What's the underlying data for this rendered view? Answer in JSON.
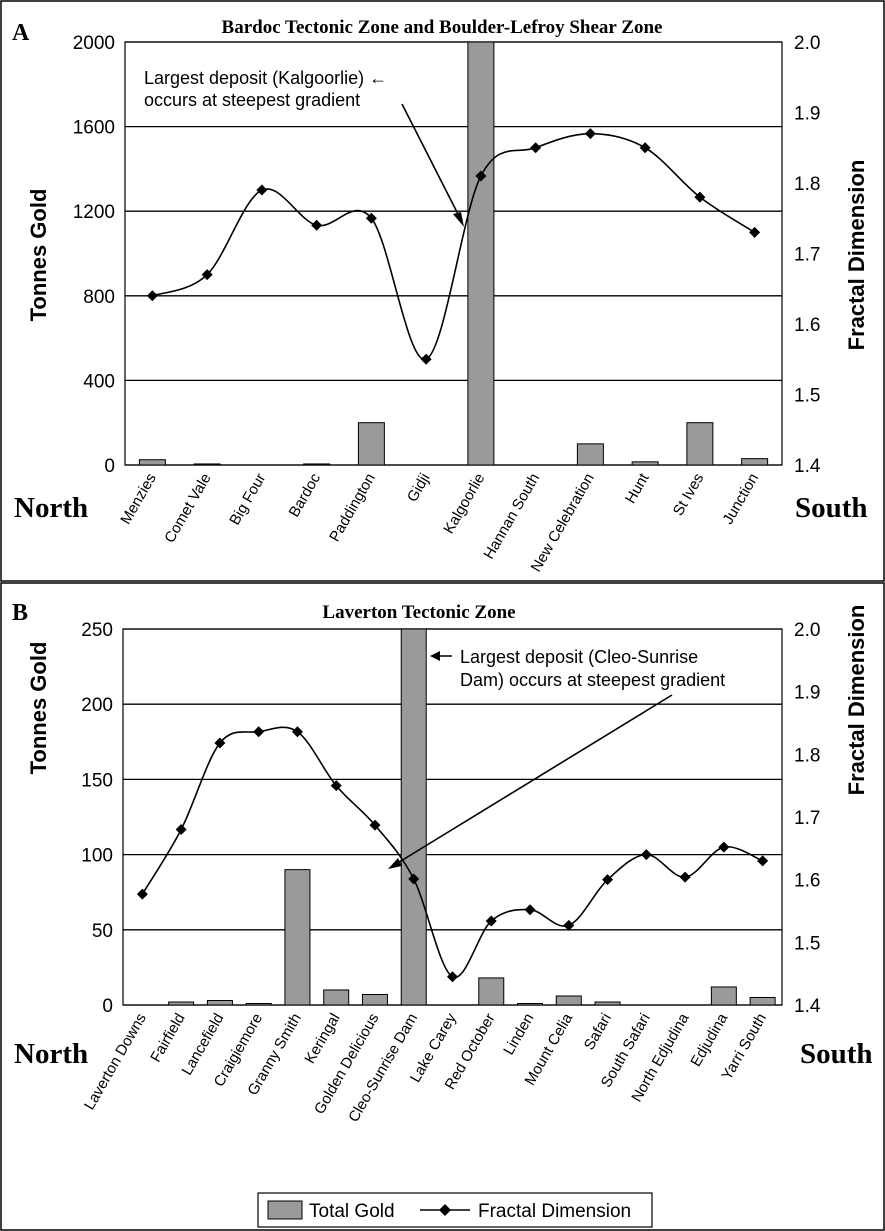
{
  "chart_data": [
    {
      "type": "bar",
      "panel_label": "A",
      "title": "Bardoc Tectonic Zone and Boulder-Lefroy Shear Zone",
      "ylabel": "Tonnes Gold",
      "y2label": "Fractal Dimension",
      "ylim": [
        0,
        2000
      ],
      "y2lim": [
        1.4,
        2.0
      ],
      "yticks": [
        "0",
        "400",
        "800",
        "1200",
        "1600",
        "2000"
      ],
      "y2ticks": [
        "1.4",
        "1.5",
        "1.6",
        "1.7",
        "1.8",
        "1.9",
        "2.0"
      ],
      "left_end_label": "North",
      "right_end_label": "South",
      "grid": true,
      "categories": [
        "Menzies",
        "Comet Vale",
        "Big Four",
        "Bardoc",
        "Paddington",
        "Gidji",
        "Kalgoorlie",
        "Hannan South",
        "New Celebration",
        "Hunt",
        "St Ives",
        "Junction"
      ],
      "series": [
        {
          "name": "Total Gold",
          "axis": "left",
          "type": "bar",
          "values": [
            25,
            5,
            0,
            5,
            200,
            0,
            2000,
            0,
            100,
            15,
            200,
            30
          ]
        },
        {
          "name": "Fractal Dimension",
          "axis": "right",
          "type": "line",
          "values": [
            1.64,
            1.67,
            1.79,
            1.74,
            1.75,
            1.55,
            1.81,
            1.85,
            1.87,
            1.85,
            1.78,
            1.73
          ]
        }
      ],
      "annotation": {
        "line1": "Largest deposit (Kalgoorlie) ←",
        "line2": "occurs at steepest gradient"
      }
    },
    {
      "type": "bar",
      "panel_label": "B",
      "title": "Laverton Tectonic Zone",
      "ylabel": "Tonnes Gold",
      "y2label": "Fractal Dimension",
      "ylim": [
        0,
        250
      ],
      "y2lim": [
        1.4,
        2.0
      ],
      "yticks": [
        "0",
        "50",
        "100",
        "150",
        "200",
        "250"
      ],
      "y2ticks": [
        "1.4",
        "1.5",
        "1.6",
        "1.7",
        "1.8",
        "1.9",
        "2.0"
      ],
      "left_end_label": "North",
      "right_end_label": "South",
      "grid": true,
      "categories": [
        "Laverton Downs",
        "Fairfield",
        "Lancefield",
        "Craigiemore",
        "Granny Smith",
        "Keringal",
        "Golden Delicious",
        "Cleo-Sunrise Dam",
        "Lake Carey",
        "Red October",
        "Linden",
        "Mount Celia",
        "Safari",
        "South Safari",
        "North Edjudina",
        "Edjudina",
        "Yarri South"
      ],
      "series": [
        {
          "name": "Total Gold",
          "axis": "left",
          "type": "bar",
          "values": [
            0,
            2,
            3,
            1,
            90,
            10,
            7,
            250,
            0,
            18,
            1,
            6,
            2,
            0,
            0,
            12,
            5
          ]
        },
        {
          "name": "Fractal Dimension",
          "axis": "right",
          "type": "line",
          "values": [
            1.577,
            1.68,
            1.818,
            1.836,
            1.836,
            1.75,
            1.687,
            1.601,
            1.445,
            1.534,
            1.552,
            1.527,
            1.6,
            1.64,
            1.604,
            1.652,
            1.63
          ]
        }
      ],
      "annotation": {
        "line1": "Largest deposit (Cleo-Sunrise",
        "line2": "Dam) occurs at steepest gradient"
      }
    }
  ],
  "legend": {
    "bar_label": "Total Gold",
    "line_label": "Fractal Dimension"
  }
}
